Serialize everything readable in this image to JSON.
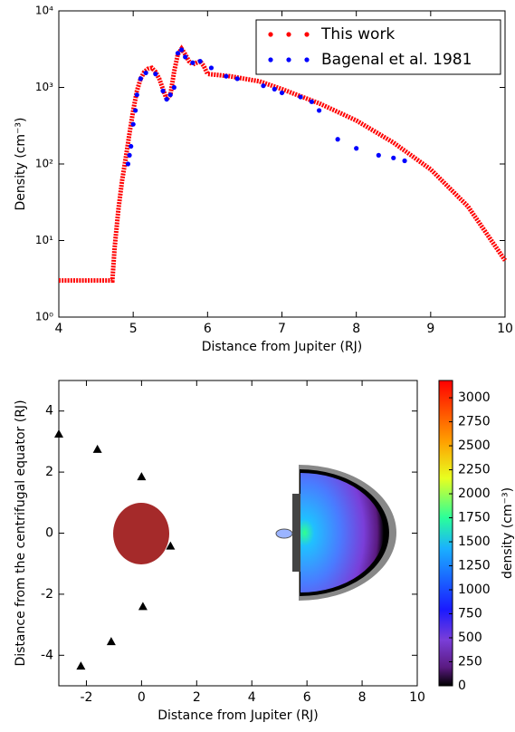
{
  "chart_data": [
    {
      "type": "log-line-scatter",
      "xlabel": "Distance from Jupiter (RJ)",
      "ylabel": "Density (cm⁻³)",
      "xlim": [
        4,
        10
      ],
      "xticks": [
        4,
        5,
        6,
        7,
        8,
        9,
        10
      ],
      "ylim": [
        1,
        10000
      ],
      "yticks": [
        {
          "value": 1,
          "label": "10⁰"
        },
        {
          "value": 10,
          "label": "10¹"
        },
        {
          "value": 100,
          "label": "10²"
        },
        {
          "value": 1000,
          "label": "10³"
        },
        {
          "value": 10000,
          "label": "10⁴"
        }
      ],
      "log_y": true,
      "legend": "upper right",
      "series": [
        {
          "name": "This work",
          "color": "#ff0000",
          "style": "line",
          "x": [
            4,
            4.3,
            4.6,
            4.72,
            4.75,
            4.8,
            4.85,
            4.9,
            4.95,
            5.0,
            5.05,
            5.1,
            5.15,
            5.2,
            5.25,
            5.3,
            5.35,
            5.4,
            5.45,
            5.5,
            5.55,
            5.6,
            5.65,
            5.7,
            5.75,
            5.8,
            5.85,
            5.9,
            5.95,
            6.0,
            6.3,
            6.7,
            7.0,
            7.5,
            8.0,
            8.5,
            9.0,
            9.5,
            10.0
          ],
          "values": [
            3,
            3,
            3,
            3,
            8,
            25,
            60,
            120,
            250,
            500,
            900,
            1300,
            1600,
            1750,
            1800,
            1600,
            1300,
            950,
            700,
            800,
            1600,
            2700,
            3200,
            2700,
            2200,
            2000,
            2100,
            2200,
            1900,
            1500,
            1400,
            1200,
            950,
            620,
            370,
            190,
            85,
            28,
            5.5
          ]
        },
        {
          "name": "Bagenal et al. 1981",
          "color": "#0000ff",
          "style": "points",
          "x": [
            4.93,
            4.95,
            4.97,
            5.0,
            5.03,
            5.05,
            5.1,
            5.17,
            5.3,
            5.4,
            5.45,
            5.5,
            5.55,
            5.6,
            5.65,
            5.7,
            5.8,
            5.9,
            6.05,
            6.25,
            6.4,
            6.75,
            6.9,
            7.0,
            7.25,
            7.4,
            7.5,
            7.75,
            8.0,
            8.3,
            8.5,
            8.65
          ],
          "values": [
            100,
            130,
            170,
            330,
            500,
            800,
            1300,
            1550,
            1500,
            900,
            700,
            800,
            1000,
            2800,
            3100,
            2500,
            2100,
            2200,
            1800,
            1400,
            1300,
            1050,
            950,
            850,
            750,
            650,
            500,
            210,
            160,
            130,
            120,
            110
          ]
        }
      ]
    },
    {
      "type": "contour",
      "xlabel": "Distance from Jupiter (RJ)",
      "ylabel": "Distance from the centrifugal equator (RJ)",
      "xlim": [
        -3,
        10
      ],
      "xticks": [
        -2,
        0,
        2,
        4,
        6,
        8,
        10
      ],
      "ylim": [
        -5,
        5
      ],
      "yticks": [
        -4,
        -2,
        0,
        2,
        4
      ],
      "colorbar_label": "density (cm⁻³)",
      "clim": [
        0,
        3180
      ],
      "cticks": [
        0,
        250,
        500,
        750,
        1000,
        1250,
        1500,
        1750,
        2000,
        2250,
        2500,
        2750,
        3000
      ],
      "series": [
        {
          "color": "#000000",
          "x": [
            -3,
            -1.6,
            0,
            1.05,
            0.05,
            -1.1,
            -2.2
          ],
          "values": [
            3.25,
            2.75,
            1.85,
            -0.42,
            -2.4,
            -3.55,
            -4.35
          ]
        }
      ]
    }
  ]
}
